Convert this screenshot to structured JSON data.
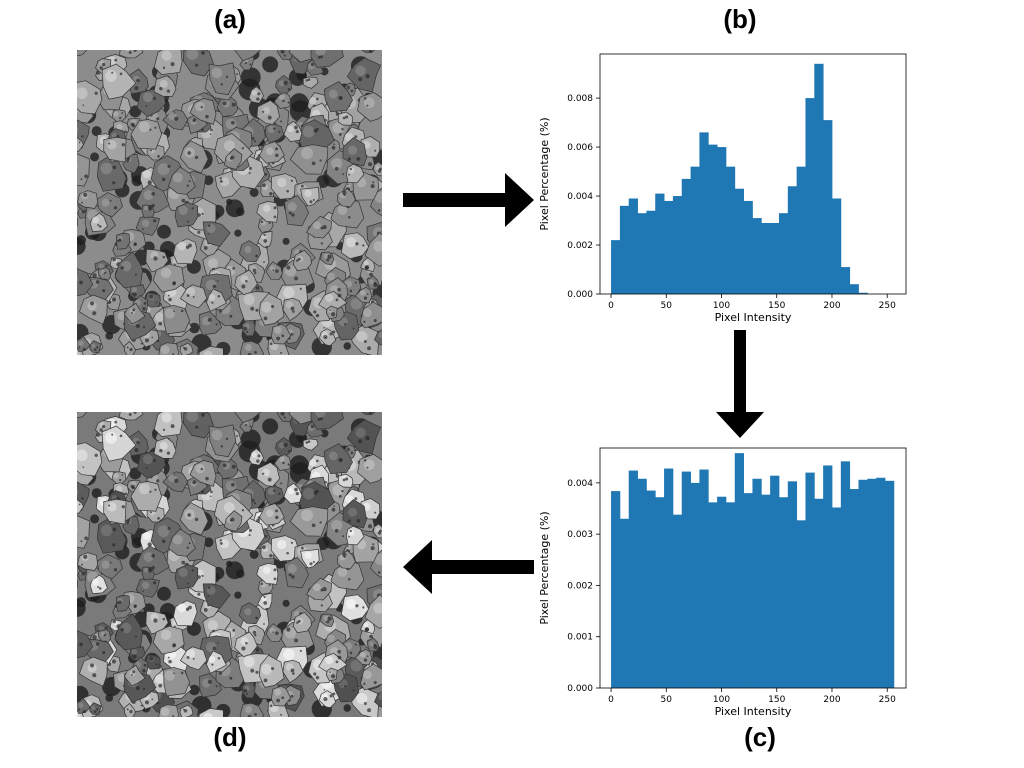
{
  "panels": {
    "a": "(a)",
    "b": "(b)",
    "c": "(c)",
    "d": "(d)"
  },
  "colors": {
    "bar": "#1f77b4",
    "arrow": "#000000",
    "photo_original_bg": "#8c8c8c",
    "photo_equalized_bg": "#7a7a7a"
  },
  "images": {
    "original": {
      "icon": "rock-aggregate-grayscale-image"
    },
    "equalized": {
      "icon": "rock-aggregate-equalized-image"
    }
  },
  "arrows": {
    "a_to_b": "arrow-right-icon",
    "b_to_c": "arrow-down-icon",
    "c_to_d": "arrow-left-icon"
  },
  "chart_data": [
    {
      "id": "b",
      "type": "bar",
      "xlabel": "Pixel Intensity",
      "ylabel": "Pixel Percentage (%)",
      "xlim": [
        -10,
        267
      ],
      "ylim": [
        0,
        0.0098
      ],
      "xticks": [
        0,
        50,
        100,
        150,
        200,
        250
      ],
      "yticks": [
        0,
        0.002,
        0.004,
        0.006,
        0.008
      ],
      "ytick_labels": [
        "0.000",
        "0.002",
        "0.004",
        "0.006",
        "0.008"
      ],
      "bin_width": 8,
      "bin_start": 0,
      "values": [
        0.0022,
        0.0036,
        0.0039,
        0.0033,
        0.0034,
        0.0041,
        0.0038,
        0.004,
        0.0047,
        0.0052,
        0.0066,
        0.0061,
        0.006,
        0.0052,
        0.0043,
        0.0038,
        0.0031,
        0.0029,
        0.0029,
        0.0033,
        0.0044,
        0.0052,
        0.008,
        0.0094,
        0.0071,
        0.0039,
        0.0011,
        0.0004,
        5e-05,
        0.0,
        0.0,
        0.0
      ]
    },
    {
      "id": "c",
      "type": "bar",
      "xlabel": "Pixel Intensity",
      "ylabel": "Pixel Percentage (%)",
      "xlim": [
        -10,
        267
      ],
      "ylim": [
        0,
        0.00468
      ],
      "xticks": [
        0,
        50,
        100,
        150,
        200,
        250
      ],
      "yticks": [
        0,
        0.001,
        0.002,
        0.003,
        0.004
      ],
      "ytick_labels": [
        "0.000",
        "0.001",
        "0.002",
        "0.003",
        "0.004"
      ],
      "bin_width": 8,
      "bin_start": 0,
      "values": [
        0.00384,
        0.0033,
        0.00424,
        0.00408,
        0.00385,
        0.00372,
        0.00428,
        0.00338,
        0.00422,
        0.004,
        0.00426,
        0.00362,
        0.00373,
        0.00362,
        0.00458,
        0.0038,
        0.00408,
        0.00377,
        0.00414,
        0.00372,
        0.00403,
        0.00327,
        0.0042,
        0.00369,
        0.00434,
        0.00352,
        0.00442,
        0.00388,
        0.00406,
        0.00408,
        0.0041,
        0.00404
      ]
    }
  ]
}
